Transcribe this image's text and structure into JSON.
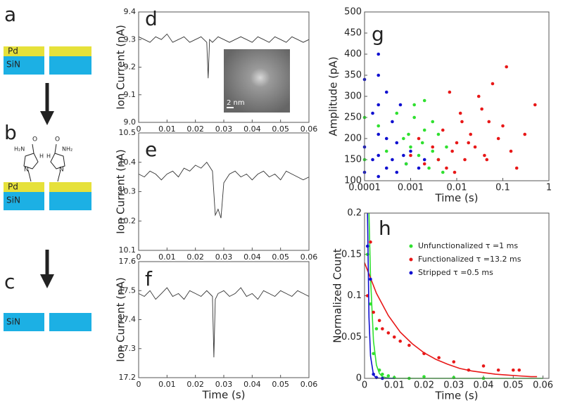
{
  "schematic": {
    "labels": [
      "a",
      "b",
      "c"
    ],
    "pd": "Pd",
    "sin": "SiN",
    "molecule_left": [
      "O",
      "H₂N",
      "N",
      "H"
    ],
    "molecule_right": [
      "O",
      "NH₂",
      "N",
      "H"
    ]
  },
  "chart_data": [
    {
      "type": "line",
      "label": "d",
      "ylabel": "Ion Current (nA)",
      "inset_label": "2 nm",
      "xlim": [
        0,
        0.06
      ],
      "xticks": [
        0,
        0.01,
        0.02,
        0.03,
        0.04,
        0.05,
        0.06
      ],
      "ylim": [
        9,
        9.4
      ],
      "yticks": [
        {
          "value": 9,
          "label": "9.0"
        },
        9.1,
        9.2,
        9.3,
        9.4
      ],
      "series": [
        {
          "color": "#333333",
          "x": [
            0,
            0.002,
            0.004,
            0.006,
            0.008,
            0.01,
            0.012,
            0.014,
            0.016,
            0.018,
            0.02,
            0.022,
            0.024,
            0.0245,
            0.025,
            0.026,
            0.028,
            0.03,
            0.032,
            0.034,
            0.036,
            0.038,
            0.04,
            0.042,
            0.044,
            0.046,
            0.048,
            0.05,
            0.052,
            0.054,
            0.056,
            0.058,
            0.06
          ],
          "values": [
            9.31,
            9.3,
            9.29,
            9.31,
            9.3,
            9.32,
            9.29,
            9.3,
            9.31,
            9.29,
            9.3,
            9.31,
            9.29,
            9.16,
            9.3,
            9.29,
            9.31,
            9.3,
            9.29,
            9.3,
            9.31,
            9.3,
            9.29,
            9.31,
            9.3,
            9.29,
            9.31,
            9.3,
            9.29,
            9.31,
            9.3,
            9.29,
            9.3
          ]
        }
      ]
    },
    {
      "type": "line",
      "label": "e",
      "ylabel": "Ion Current (nA)",
      "xlim": [
        0,
        0.06
      ],
      "xticks": [
        0,
        0.01,
        0.02,
        0.03,
        0.04,
        0.05,
        0.06
      ],
      "ylim": [
        10.1,
        10.5
      ],
      "yticks": [
        10.1,
        10.2,
        10.3,
        10.4,
        10.5
      ],
      "series": [
        {
          "color": "#333333",
          "x": [
            0,
            0.002,
            0.004,
            0.006,
            0.008,
            0.01,
            0.012,
            0.014,
            0.016,
            0.018,
            0.02,
            0.022,
            0.024,
            0.026,
            0.027,
            0.028,
            0.029,
            0.03,
            0.032,
            0.034,
            0.036,
            0.038,
            0.04,
            0.042,
            0.044,
            0.046,
            0.048,
            0.05,
            0.052,
            0.054,
            0.056,
            0.058,
            0.06
          ],
          "values": [
            10.36,
            10.35,
            10.37,
            10.36,
            10.34,
            10.36,
            10.37,
            10.35,
            10.38,
            10.37,
            10.39,
            10.38,
            10.4,
            10.37,
            10.22,
            10.24,
            10.21,
            10.33,
            10.36,
            10.37,
            10.35,
            10.36,
            10.34,
            10.36,
            10.37,
            10.35,
            10.36,
            10.34,
            10.37,
            10.36,
            10.35,
            10.34,
            10.35
          ]
        }
      ]
    },
    {
      "type": "line",
      "label": "f",
      "ylabel": "Ion Current (nA)",
      "xlabel": "Time (s)",
      "xlim": [
        0,
        0.06
      ],
      "xticks": [
        0,
        0.01,
        0.02,
        0.03,
        0.04,
        0.05,
        0.06
      ],
      "ylim": [
        17.2,
        17.6
      ],
      "yticks": [
        17.2,
        17.3,
        17.4,
        17.5,
        17.6
      ],
      "series": [
        {
          "color": "#333333",
          "x": [
            0,
            0.002,
            0.004,
            0.006,
            0.008,
            0.01,
            0.012,
            0.014,
            0.016,
            0.018,
            0.02,
            0.022,
            0.024,
            0.026,
            0.0265,
            0.027,
            0.028,
            0.03,
            0.032,
            0.034,
            0.036,
            0.038,
            0.04,
            0.042,
            0.044,
            0.046,
            0.048,
            0.05,
            0.052,
            0.054,
            0.056,
            0.058,
            0.06
          ],
          "values": [
            17.49,
            17.48,
            17.5,
            17.47,
            17.49,
            17.51,
            17.48,
            17.49,
            17.47,
            17.5,
            17.49,
            17.48,
            17.5,
            17.48,
            17.27,
            17.47,
            17.49,
            17.5,
            17.48,
            17.49,
            17.51,
            17.48,
            17.49,
            17.47,
            17.5,
            17.49,
            17.48,
            17.5,
            17.49,
            17.48,
            17.5,
            17.49,
            17.48
          ]
        }
      ]
    },
    {
      "type": "scatter",
      "label": "g",
      "ylabel": "Amplitude (pA)",
      "xlabel": "Time (s)",
      "xscale": "log",
      "xlim": [
        0.0001,
        1
      ],
      "xticks": [
        0.0001,
        0.001,
        0.01,
        0.1,
        1
      ],
      "ylim": [
        100,
        500
      ],
      "yticks": [
        100,
        150,
        200,
        250,
        300,
        350,
        400,
        450,
        500
      ],
      "series": [
        {
          "color": "#1010d0",
          "x": [
            0.0001,
            0.0001,
            0.0001,
            0.00015,
            0.00015,
            0.0002,
            0.0002,
            0.0002,
            0.0002,
            0.0002,
            0.0002,
            0.0003,
            0.0003,
            0.0003,
            0.0004,
            0.0004,
            0.0005,
            0.0005,
            0.0006,
            0.0007,
            0.0008,
            0.001,
            0.0015,
            0.002
          ],
          "values": [
            120,
            180,
            340,
            150,
            260,
            110,
            160,
            210,
            280,
            350,
            400,
            130,
            200,
            310,
            150,
            240,
            120,
            190,
            280,
            160,
            140,
            170,
            130,
            150
          ]
        },
        {
          "color": "#30e030",
          "x": [
            0.0001,
            0.0001,
            0.0002,
            0.0003,
            0.0005,
            0.0007,
            0.0008,
            0.001,
            0.0012,
            0.0015,
            0.002,
            0.002,
            0.0025,
            0.003,
            0.003,
            0.004,
            0.004,
            0.005,
            0.006,
            0.0012,
            0.0009,
            0.0018
          ],
          "values": [
            250,
            150,
            230,
            170,
            260,
            200,
            140,
            180,
            250,
            160,
            220,
            290,
            130,
            170,
            240,
            150,
            210,
            120,
            180,
            280,
            210,
            190
          ]
        },
        {
          "color": "#e81818",
          "x": [
            0.001,
            0.0015,
            0.002,
            0.003,
            0.004,
            0.005,
            0.006,
            0.008,
            0.01,
            0.012,
            0.015,
            0.02,
            0.025,
            0.03,
            0.04,
            0.05,
            0.06,
            0.08,
            0.1,
            0.12,
            0.15,
            0.2,
            0.3,
            0.5,
            0.007,
            0.009,
            0.013,
            0.018,
            0.035,
            0.045
          ],
          "values": [
            160,
            200,
            140,
            180,
            150,
            220,
            130,
            170,
            190,
            260,
            150,
            210,
            180,
            300,
            160,
            240,
            330,
            200,
            230,
            370,
            170,
            130,
            210,
            280,
            310,
            120,
            240,
            190,
            270,
            150
          ]
        }
      ]
    },
    {
      "type": "scatter",
      "label": "h",
      "ylabel": "Normalized Count",
      "xlabel": "Time (s)",
      "xlim": [
        0,
        0.062
      ],
      "xticks": [
        0,
        0.01,
        0.02,
        0.03,
        0.04,
        0.05,
        0.06
      ],
      "ylim": [
        0,
        0.2
      ],
      "yticks": [
        0,
        0.05,
        0.1,
        0.15,
        0.2
      ],
      "series": [
        {
          "name": "Unfunctionalized  τ =1 ms",
          "color": "#30e030",
          "x": [
            0.001,
            0.002,
            0.003,
            0.004,
            0.005,
            0.006,
            0.008,
            0.01,
            0.015,
            0.02,
            0.03,
            0.04
          ],
          "values": [
            0.15,
            0.09,
            0.03,
            0.06,
            0.01,
            0.005,
            0.003,
            0.001,
            0,
            0.002,
            0.001,
            0
          ],
          "fit": {
            "x": [
              0.0015,
              0.002,
              0.003,
              0.004,
              0.005,
              0.006,
              0.008,
              0.01,
              0.02,
              0.03,
              0.04,
              0.05,
              0.06
            ],
            "values": [
              0.2,
              0.122,
              0.045,
              0.016,
              0.006,
              0.002,
              0.0003,
              0,
              0,
              0,
              0,
              0,
              0
            ]
          }
        },
        {
          "name": "Functionalized τ =13.2 ms",
          "color": "#e81818",
          "x": [
            0.001,
            0.002,
            0.003,
            0.005,
            0.006,
            0.008,
            0.01,
            0.012,
            0.015,
            0.02,
            0.025,
            0.03,
            0.035,
            0.04,
            0.045,
            0.05,
            0.052
          ],
          "values": [
            0.1,
            0.165,
            0.08,
            0.07,
            0.06,
            0.055,
            0.05,
            0.045,
            0.04,
            0.03,
            0.025,
            0.02,
            0.01,
            0.015,
            0.01,
            0.01,
            0.01
          ],
          "fit": {
            "x": [
              0,
              0.004,
              0.008,
              0.012,
              0.016,
              0.02,
              0.024,
              0.028,
              0.032,
              0.036,
              0.04,
              0.044,
              0.048,
              0.052,
              0.056,
              0.058
            ],
            "values": [
              0.14,
              0.103,
              0.076,
              0.056,
              0.042,
              0.031,
              0.023,
              0.017,
              0.012,
              0.009,
              0.007,
              0.005,
              0.004,
              0.003,
              0.002,
              0.002
            ]
          }
        },
        {
          "name": "Stripped τ =0.5 ms",
          "color": "#1010d0",
          "x": [
            0.001,
            0.002,
            0.003,
            0.004,
            0.006
          ],
          "values": [
            0.16,
            0.12,
            0.005,
            0.001,
            0
          ],
          "fit": {
            "x": [
              0.001,
              0.0015,
              0.002,
              0.003,
              0.004,
              0.006,
              0.01
            ],
            "values": [
              0.2,
              0.074,
              0.027,
              0.004,
              0.0005,
              0,
              0
            ]
          }
        }
      ]
    }
  ]
}
